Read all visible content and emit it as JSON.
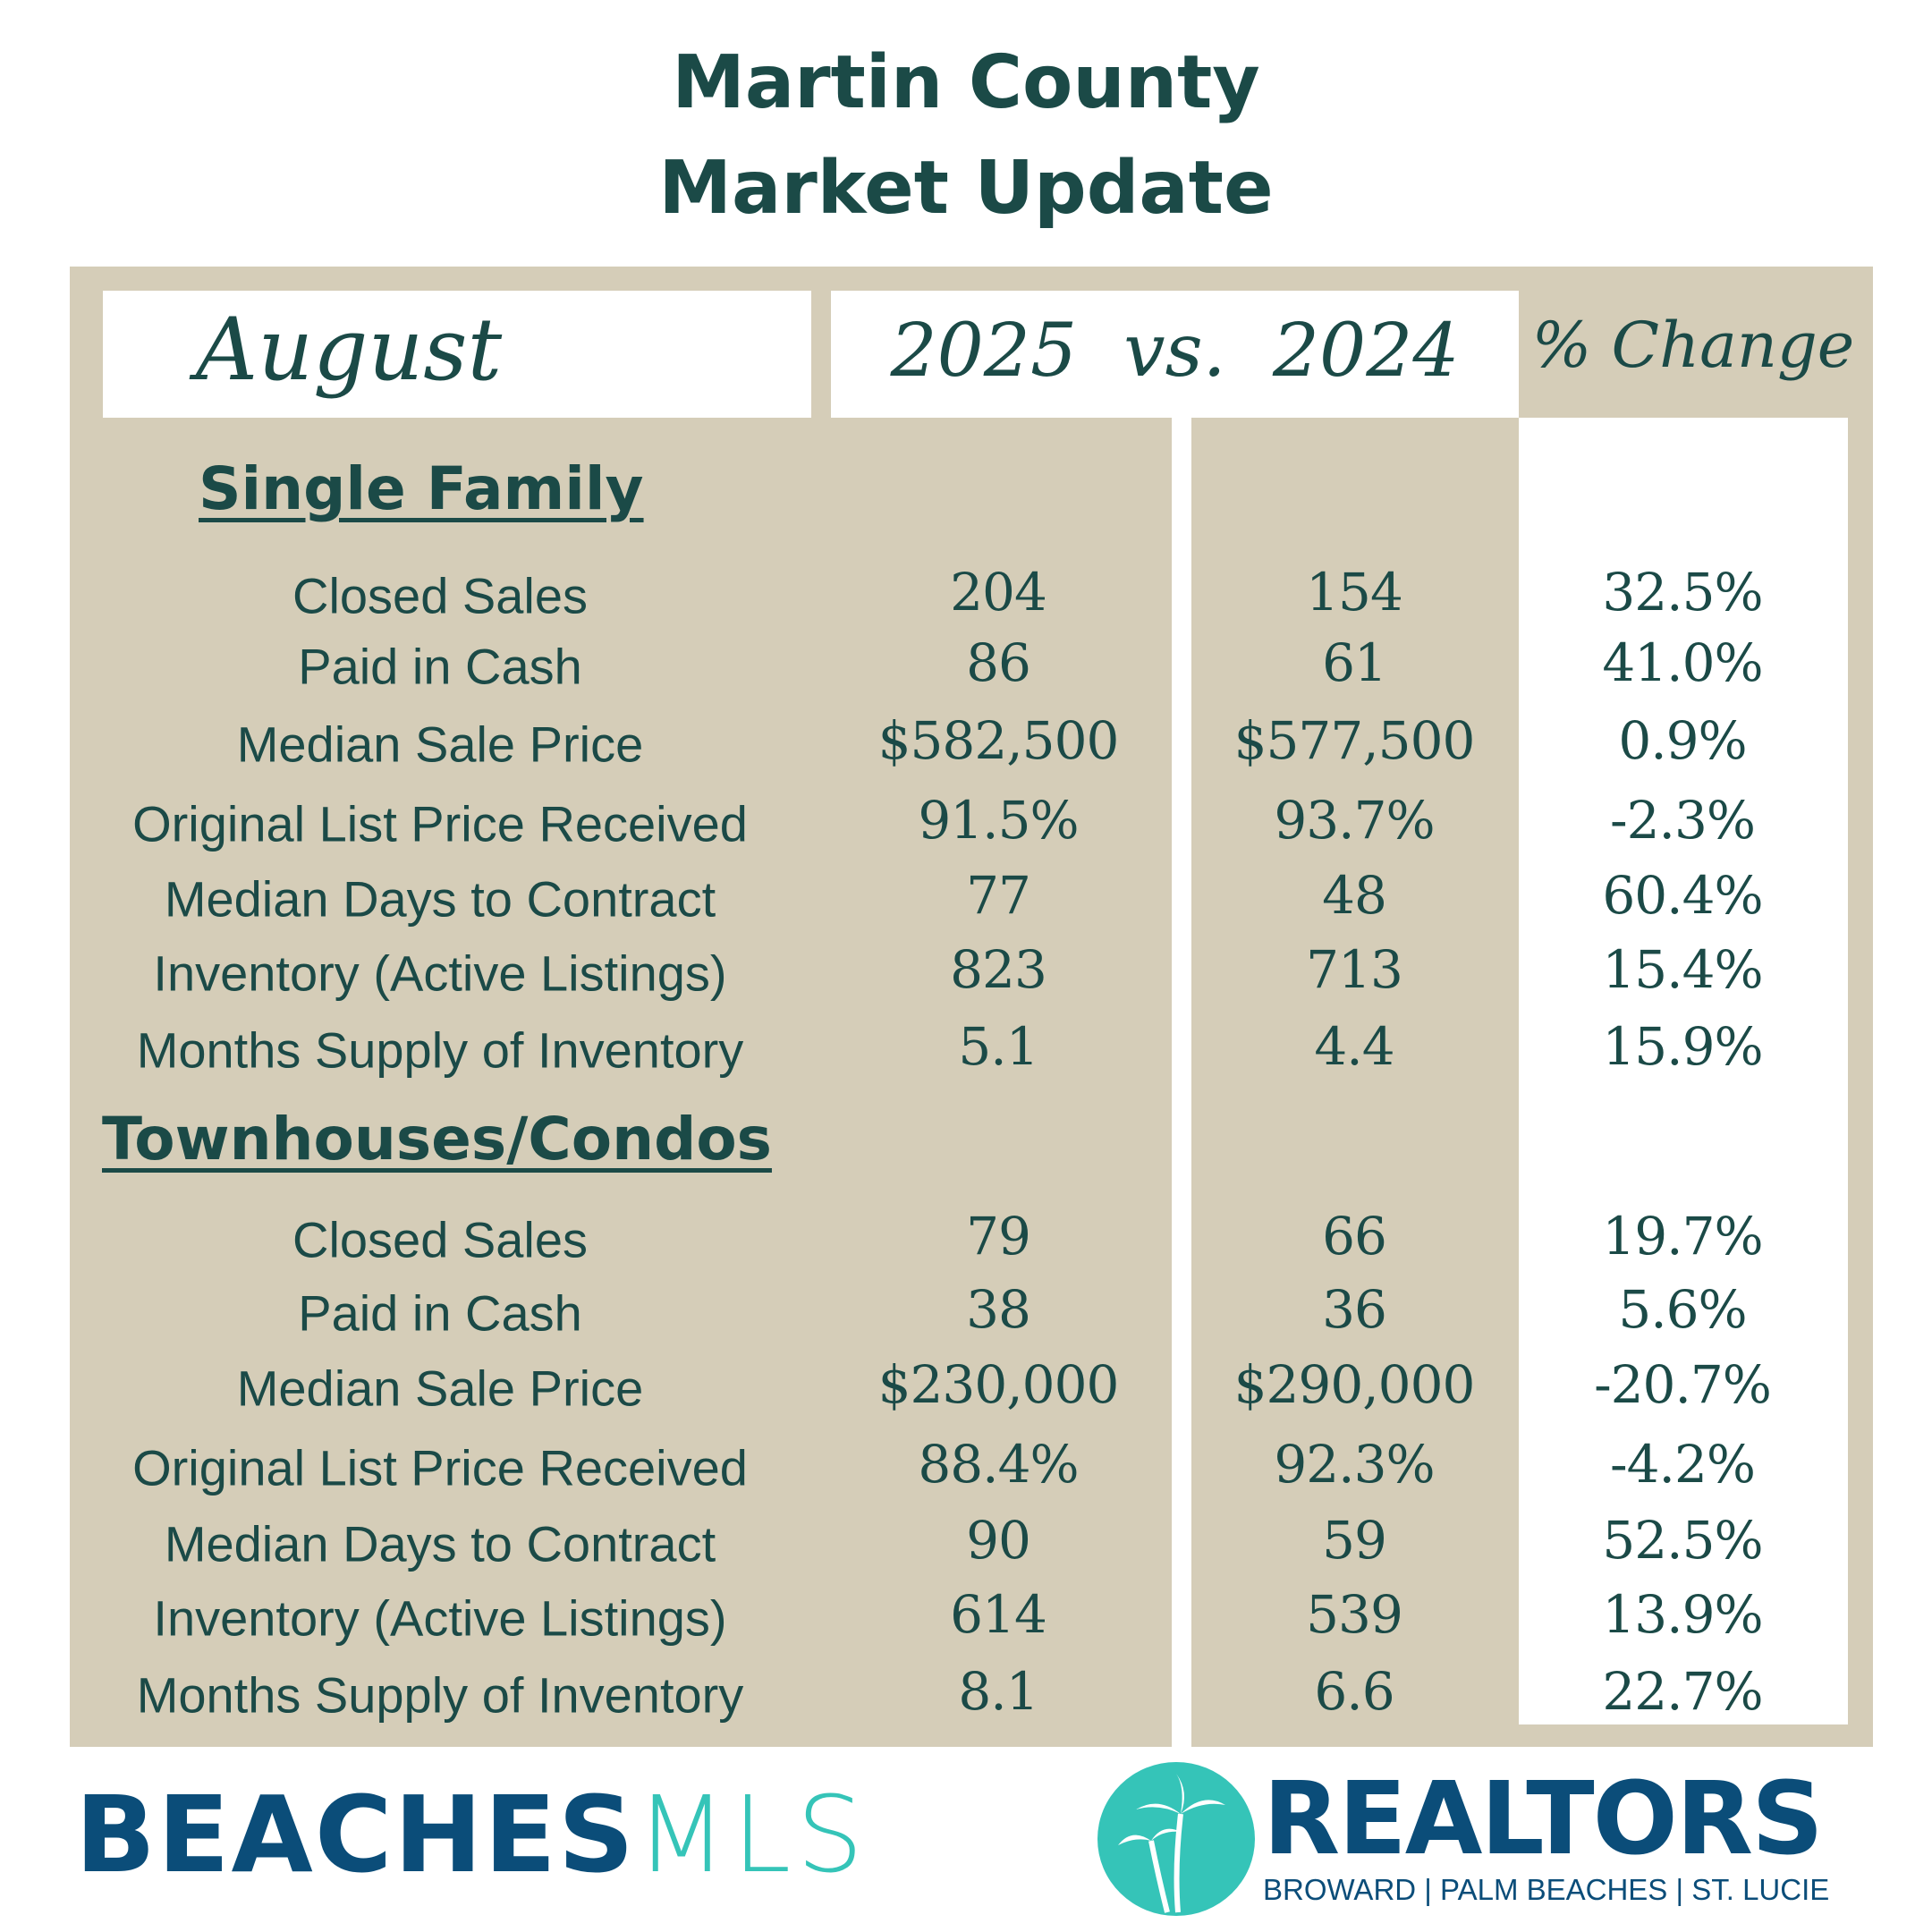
{
  "header": {
    "title_line1": "Martin County",
    "title_line2": "Market Update"
  },
  "table_header": {
    "month": "August",
    "comparison": "2025  vs.  2024",
    "change": "% Change"
  },
  "sections": [
    {
      "title": "Single Family",
      "rows": [
        {
          "label": "Closed Sales",
          "y2025": "204",
          "y2024": "154",
          "change": "32.5%"
        },
        {
          "label": "Paid in Cash",
          "y2025": "86",
          "y2024": "61",
          "change": "41.0%"
        },
        {
          "label": "Median Sale Price",
          "y2025": "$582,500",
          "y2024": "$577,500",
          "change": "0.9%"
        },
        {
          "label": "Original List Price Received",
          "y2025": "91.5%",
          "y2024": "93.7%",
          "change": "-2.3%"
        },
        {
          "label": "Median Days to Contract",
          "y2025": "77",
          "y2024": "48",
          "change": "60.4%"
        },
        {
          "label": "Inventory (Active Listings)",
          "y2025": "823",
          "y2024": "713",
          "change": "15.4%"
        },
        {
          "label": "Months Supply of Inventory",
          "y2025": "5.1",
          "y2024": "4.4",
          "change": "15.9%"
        }
      ]
    },
    {
      "title": "Townhouses/Condos",
      "rows": [
        {
          "label": "Closed Sales",
          "y2025": "79",
          "y2024": "66",
          "change": "19.7%"
        },
        {
          "label": "Paid in Cash",
          "y2025": "38",
          "y2024": "36",
          "change": "5.6%"
        },
        {
          "label": "Median Sale Price",
          "y2025": "$230,000",
          "y2024": "$290,000",
          "change": "-20.7%"
        },
        {
          "label": "Original List Price Received",
          "y2025": "88.4%",
          "y2024": "92.3%",
          "change": "-4.2%"
        },
        {
          "label": "Median Days to Contract",
          "y2025": "90",
          "y2024": "59",
          "change": "52.5%"
        },
        {
          "label": "Inventory (Active Listings)",
          "y2025": "614",
          "y2024": "539",
          "change": "13.9%"
        },
        {
          "label": "Months Supply of Inventory",
          "y2025": "8.1",
          "y2024": "6.6",
          "change": "22.7%"
        }
      ]
    }
  ],
  "logos": {
    "beaches_bold": "BEACHES",
    "beaches_light": "MLS",
    "realtors": "REALTORS",
    "realtors_sub": "BROWARD | PALM BEACHES | ST. LUCIE"
  },
  "colors": {
    "primary": "#1b4a47",
    "panel": "#d5cdb8",
    "logo_navy": "#0b4d79",
    "logo_teal": "#35c4b8"
  }
}
